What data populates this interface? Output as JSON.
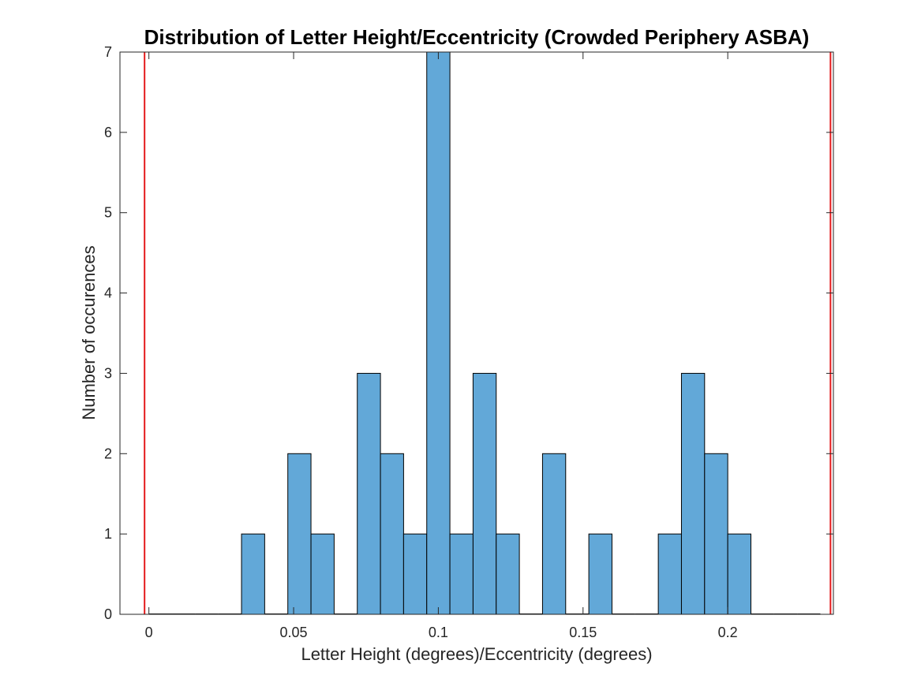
{
  "chart_data": {
    "type": "bar",
    "title": "Distribution of Letter Height/Eccentricity (Crowded Periphery ASBA)",
    "xlabel": "Letter Height (degrees)/Eccentricity (degrees)",
    "ylabel": "Number of occurences",
    "xlim": [
      -0.01,
      0.2365
    ],
    "ylim": [
      0,
      7
    ],
    "xticks": [
      0,
      0.05,
      0.1,
      0.15,
      0.2
    ],
    "xtick_labels": [
      "0",
      "0.05",
      "0.1",
      "0.15",
      "0.2"
    ],
    "yticks": [
      0,
      1,
      2,
      3,
      4,
      5,
      6,
      7
    ],
    "ytick_labels": [
      "0",
      "1",
      "2",
      "3",
      "4",
      "5",
      "6",
      "7"
    ],
    "bin_width": 0.008,
    "bins": [
      {
        "start": 0.0,
        "end": 0.008,
        "count": 0
      },
      {
        "start": 0.008,
        "end": 0.016,
        "count": 0
      },
      {
        "start": 0.016,
        "end": 0.024,
        "count": 0
      },
      {
        "start": 0.024,
        "end": 0.032,
        "count": 0
      },
      {
        "start": 0.032,
        "end": 0.04,
        "count": 1
      },
      {
        "start": 0.04,
        "end": 0.048,
        "count": 0
      },
      {
        "start": 0.048,
        "end": 0.056,
        "count": 2
      },
      {
        "start": 0.056,
        "end": 0.064,
        "count": 1
      },
      {
        "start": 0.064,
        "end": 0.072,
        "count": 0
      },
      {
        "start": 0.072,
        "end": 0.08,
        "count": 3
      },
      {
        "start": 0.08,
        "end": 0.088,
        "count": 2
      },
      {
        "start": 0.088,
        "end": 0.096,
        "count": 1
      },
      {
        "start": 0.096,
        "end": 0.104,
        "count": 7
      },
      {
        "start": 0.104,
        "end": 0.112,
        "count": 1
      },
      {
        "start": 0.112,
        "end": 0.12,
        "count": 3
      },
      {
        "start": 0.12,
        "end": 0.128,
        "count": 1
      },
      {
        "start": 0.128,
        "end": 0.136,
        "count": 0
      },
      {
        "start": 0.136,
        "end": 0.144,
        "count": 2
      },
      {
        "start": 0.144,
        "end": 0.152,
        "count": 0
      },
      {
        "start": 0.152,
        "end": 0.16,
        "count": 1
      },
      {
        "start": 0.16,
        "end": 0.168,
        "count": 0
      },
      {
        "start": 0.168,
        "end": 0.176,
        "count": 0
      },
      {
        "start": 0.176,
        "end": 0.184,
        "count": 1
      },
      {
        "start": 0.184,
        "end": 0.192,
        "count": 3
      },
      {
        "start": 0.192,
        "end": 0.2,
        "count": 2
      },
      {
        "start": 0.2,
        "end": 0.208,
        "count": 1
      },
      {
        "start": 0.208,
        "end": 0.216,
        "count": 0
      },
      {
        "start": 0.216,
        "end": 0.224,
        "count": 0
      },
      {
        "start": 0.224,
        "end": 0.232,
        "count": 0
      }
    ],
    "reference_lines": [
      {
        "x": -0.0015,
        "color": "#e41a1c"
      },
      {
        "x": 0.2355,
        "color": "#e41a1c"
      }
    ],
    "colors": {
      "bar_fill": "#62a8d8",
      "bar_edge": "#000000",
      "axis": "#262626"
    },
    "grid": false
  }
}
